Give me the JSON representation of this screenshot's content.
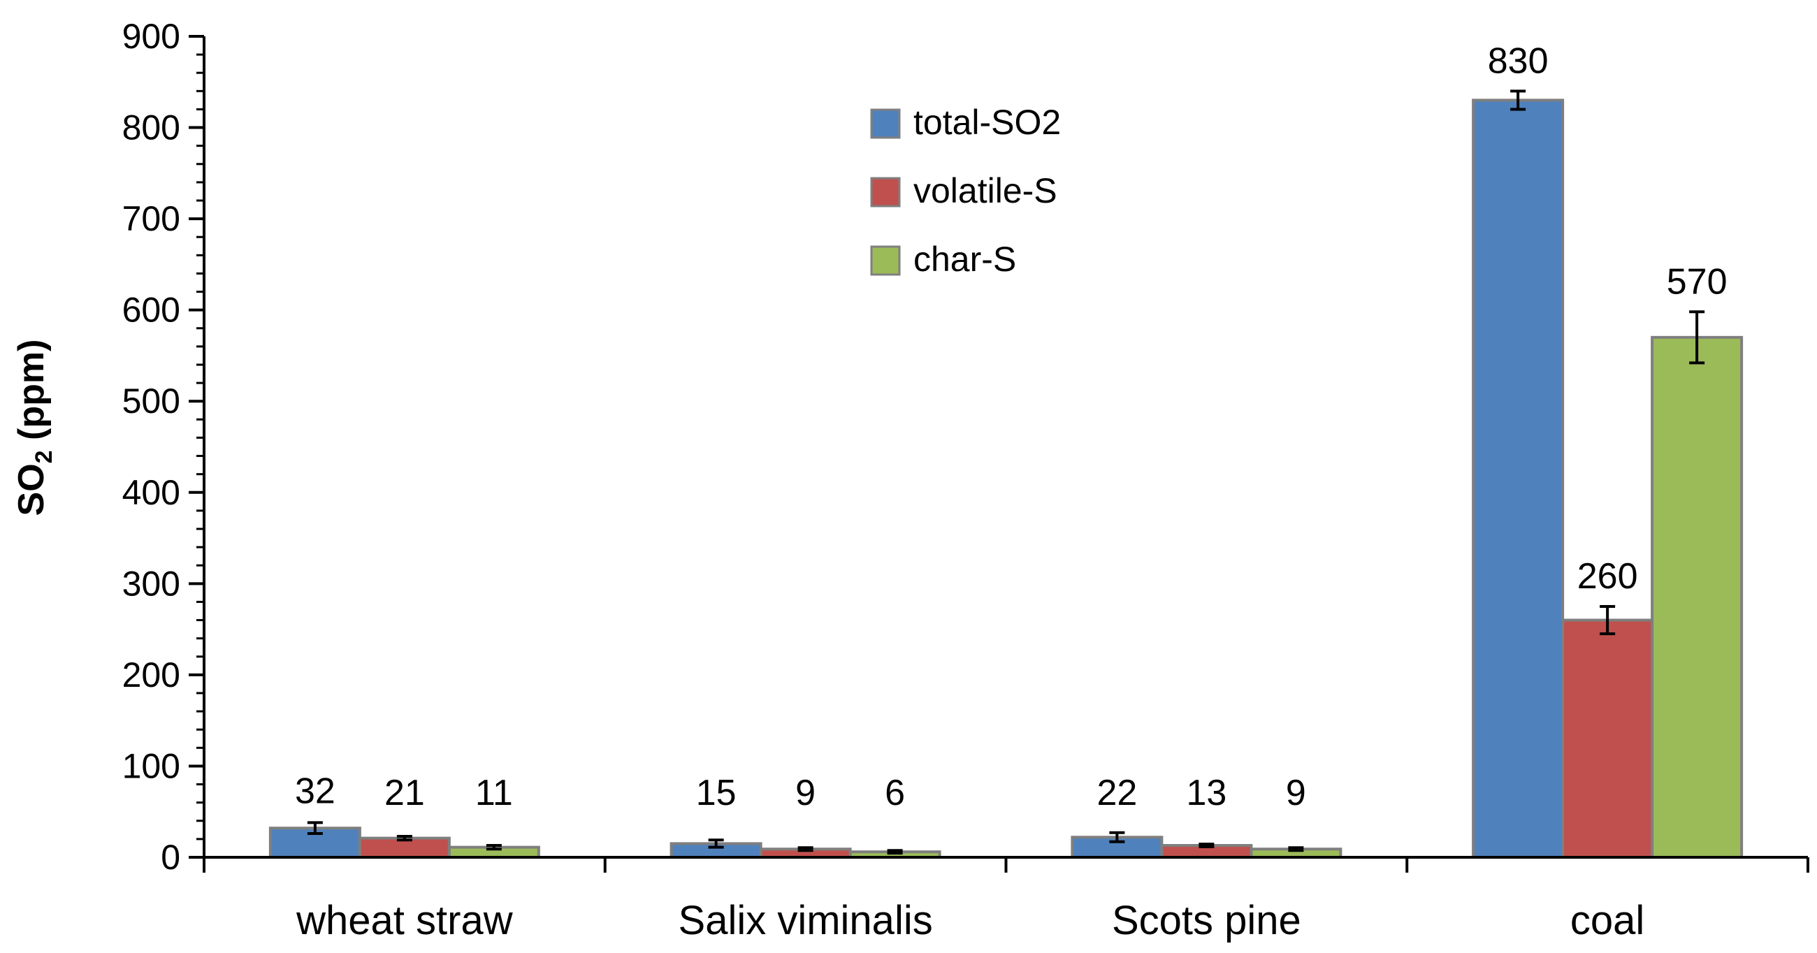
{
  "colors": {
    "total-SO2": "#4f81bd",
    "volatile-S": "#c0504d",
    "char-S": "#9bbb59",
    "bar_border": "#7f7f7f",
    "axis": "#000000"
  },
  "chart_data": {
    "type": "bar",
    "title": "",
    "xlabel": "",
    "ylabel": "SO",
    "ylabel_subscript": "2",
    "ylabel_suffix": " (ppm)",
    "ylim": [
      0,
      900
    ],
    "yticks": [
      "0",
      "100",
      "200",
      "300",
      "400",
      "500",
      "600",
      "700",
      "800",
      "900"
    ],
    "categories": [
      "wheat straw",
      "Salix viminalis",
      "Scots pine",
      "coal"
    ],
    "series": [
      {
        "name": "total-SO2",
        "values": [
          32,
          15,
          22,
          830
        ],
        "labels": [
          "32",
          "15",
          "22",
          "830"
        ],
        "errors": [
          6,
          4,
          5,
          10
        ]
      },
      {
        "name": "volatile-S",
        "values": [
          21,
          9,
          13,
          260
        ],
        "labels": [
          "21",
          "9",
          "13",
          "260"
        ],
        "errors": [
          2,
          1.5,
          1.5,
          15
        ]
      },
      {
        "name": "char-S",
        "values": [
          11,
          6,
          9,
          570
        ],
        "labels": [
          "11",
          "6",
          "9",
          "570"
        ],
        "errors": [
          2,
          1.5,
          1.5,
          28
        ]
      }
    ],
    "legend_placement": "top-center",
    "grid": false
  }
}
